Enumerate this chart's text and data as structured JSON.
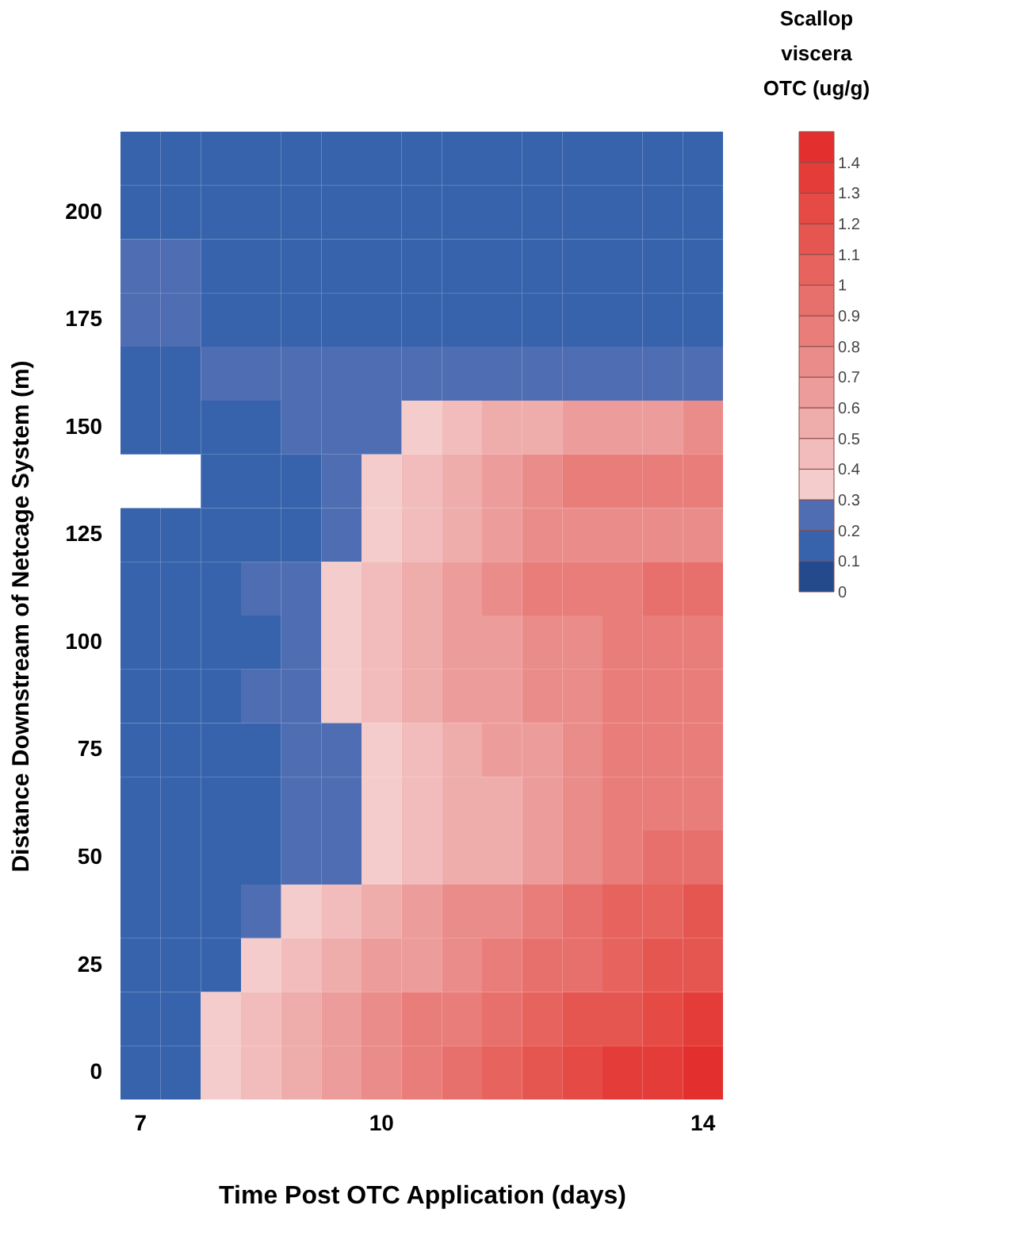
{
  "chart_data": {
    "type": "heatmap",
    "xlabel": "Time Post OTC Application (days)",
    "ylabel": "Distance Downstream of Netcage System (m)",
    "clabel": "Scallop viscera OTC (ug/g)",
    "categories": [
      "7",
      null,
      null,
      null,
      null,
      null,
      "10",
      null,
      null,
      null,
      null,
      null,
      null,
      null,
      "14"
    ],
    "y_categories": [
      null,
      "200",
      null,
      "175",
      null,
      "150",
      null,
      "125",
      null,
      "100",
      null,
      "75",
      null,
      "50",
      null,
      "25",
      null,
      "0"
    ],
    "cells": [
      [
        0.15,
        0.15,
        0.15,
        0.15,
        0.15,
        0.15,
        0.15,
        0.15,
        0.15,
        0.15,
        0.15,
        0.15,
        0.15,
        0.15,
        0.15
      ],
      [
        0.15,
        0.15,
        0.15,
        0.15,
        0.15,
        0.15,
        0.15,
        0.15,
        0.15,
        0.15,
        0.15,
        0.15,
        0.15,
        0.15,
        0.15
      ],
      [
        0.25,
        0.25,
        0.15,
        0.15,
        0.15,
        0.15,
        0.15,
        0.15,
        0.15,
        0.15,
        0.15,
        0.15,
        0.15,
        0.15,
        0.15
      ],
      [
        0.25,
        0.25,
        0.15,
        0.15,
        0.15,
        0.15,
        0.15,
        0.15,
        0.15,
        0.15,
        0.15,
        0.15,
        0.15,
        0.15,
        0.15
      ],
      [
        0.15,
        0.15,
        0.25,
        0.25,
        0.25,
        0.25,
        0.25,
        0.25,
        0.25,
        0.25,
        0.25,
        0.25,
        0.25,
        0.25,
        0.25
      ],
      [
        0.15,
        0.15,
        0.15,
        0.15,
        0.25,
        0.25,
        0.25,
        0.35,
        0.45,
        0.55,
        0.55,
        0.65,
        0.65,
        0.65,
        0.75
      ],
      [
        null,
        null,
        0.15,
        0.15,
        0.15,
        0.25,
        0.35,
        0.45,
        0.55,
        0.65,
        0.75,
        0.85,
        0.85,
        0.85,
        0.85
      ],
      [
        0.15,
        0.15,
        0.15,
        0.15,
        0.15,
        0.25,
        0.35,
        0.45,
        0.55,
        0.65,
        0.75,
        0.75,
        0.75,
        0.75,
        0.75
      ],
      [
        0.15,
        0.15,
        0.15,
        0.25,
        0.25,
        0.35,
        0.45,
        0.55,
        0.65,
        0.75,
        0.85,
        0.85,
        0.85,
        0.95,
        0.95
      ],
      [
        0.15,
        0.15,
        0.15,
        0.15,
        0.25,
        0.35,
        0.45,
        0.55,
        0.65,
        0.65,
        0.75,
        0.75,
        0.85,
        0.85,
        0.85
      ],
      [
        0.15,
        0.15,
        0.15,
        0.25,
        0.25,
        0.35,
        0.45,
        0.55,
        0.65,
        0.65,
        0.75,
        0.75,
        0.85,
        0.85,
        0.85
      ],
      [
        0.15,
        0.15,
        0.15,
        0.15,
        0.25,
        0.25,
        0.35,
        0.45,
        0.55,
        0.65,
        0.65,
        0.75,
        0.85,
        0.85,
        0.85
      ],
      [
        0.15,
        0.15,
        0.15,
        0.15,
        0.25,
        0.25,
        0.35,
        0.45,
        0.55,
        0.55,
        0.65,
        0.75,
        0.85,
        0.85,
        0.85
      ],
      [
        0.15,
        0.15,
        0.15,
        0.15,
        0.25,
        0.25,
        0.35,
        0.45,
        0.55,
        0.55,
        0.65,
        0.75,
        0.85,
        0.95,
        0.95
      ],
      [
        0.15,
        0.15,
        0.15,
        0.25,
        0.35,
        0.45,
        0.55,
        0.65,
        0.75,
        0.75,
        0.85,
        0.95,
        1.05,
        1.05,
        1.15
      ],
      [
        0.15,
        0.15,
        0.15,
        0.35,
        0.45,
        0.55,
        0.65,
        0.65,
        0.75,
        0.85,
        0.95,
        0.95,
        1.05,
        1.15,
        1.15
      ],
      [
        0.15,
        0.15,
        0.35,
        0.45,
        0.55,
        0.65,
        0.75,
        0.85,
        0.85,
        0.95,
        1.05,
        1.15,
        1.15,
        1.25,
        1.35
      ],
      [
        0.15,
        0.15,
        0.35,
        0.45,
        0.55,
        0.65,
        0.75,
        0.85,
        0.95,
        1.05,
        1.15,
        1.25,
        1.35,
        1.35,
        1.45
      ]
    ],
    "clim": [
      0,
      1.5
    ],
    "cticks": [
      0,
      0.1,
      0.2,
      0.3,
      0.4,
      0.5,
      0.6,
      0.7,
      0.8,
      0.9,
      1,
      1.1,
      1.2,
      1.3,
      1.4
    ],
    "colors": [
      "#24498c",
      "#3663ab",
      "#4f6db3",
      "#f3cccb",
      "#f1bcbb",
      "#eeacab",
      "#ec9c9b",
      "#ea8c89",
      "#e97d7a",
      "#e8706c",
      "#e7635e",
      "#e65651",
      "#e54a45",
      "#e43d39",
      "#e3302e"
    ]
  }
}
